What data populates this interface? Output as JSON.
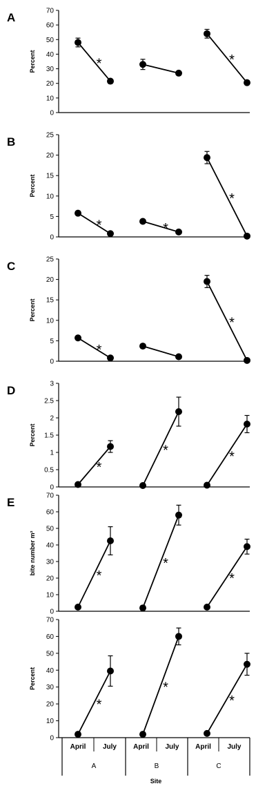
{
  "chart_data": [
    {
      "type": "line",
      "panel_label": "A",
      "ylabel": "Percent",
      "ylim": [
        0,
        70
      ],
      "yticks": [
        "0",
        "10",
        "20",
        "30",
        "40",
        "50",
        "60",
        "70"
      ],
      "categories": [
        "April",
        "July"
      ],
      "sites": [
        "A",
        "B",
        "C"
      ],
      "series": [
        {
          "values": [
            48,
            21.5
          ],
          "errors": [
            3,
            1
          ],
          "significant": true
        },
        {
          "values": [
            33,
            27
          ],
          "errors": [
            3.5,
            1
          ],
          "significant": false
        },
        {
          "values": [
            54,
            20.5
          ],
          "errors": [
            3,
            1
          ],
          "significant": true
        }
      ],
      "annotations": [
        "*",
        "",
        "*"
      ]
    },
    {
      "type": "line",
      "panel_label": "B",
      "ylabel": "Percent",
      "ylim": [
        0,
        25
      ],
      "yticks": [
        "0",
        "5",
        "10",
        "15",
        "20",
        "25"
      ],
      "categories": [
        "April",
        "July"
      ],
      "sites": [
        "A",
        "B",
        "C"
      ],
      "series": [
        {
          "values": [
            5.8,
            0.8
          ],
          "errors": [
            0.3,
            0.2
          ],
          "significant": true
        },
        {
          "values": [
            3.8,
            1.2
          ],
          "errors": [
            0.3,
            0.2
          ],
          "significant": true
        },
        {
          "values": [
            19.4,
            0.2
          ],
          "errors": [
            1.5,
            0.1
          ],
          "significant": true
        }
      ],
      "annotations": [
        "*",
        "*",
        "*"
      ]
    },
    {
      "type": "line",
      "panel_label": "C",
      "ylabel": "Percent",
      "ylim": [
        0,
        25
      ],
      "yticks": [
        "0",
        "5",
        "10",
        "15",
        "20",
        "25"
      ],
      "categories": [
        "April",
        "July"
      ],
      "sites": [
        "A",
        "B",
        "C"
      ],
      "series": [
        {
          "values": [
            5.7,
            0.8
          ],
          "errors": [
            0.3,
            0.2
          ],
          "significant": true
        },
        {
          "values": [
            3.7,
            1.1
          ],
          "errors": [
            0.3,
            0.2
          ],
          "significant": false
        },
        {
          "values": [
            19.5,
            0.2
          ],
          "errors": [
            1.5,
            0.1
          ],
          "significant": true
        }
      ],
      "annotations": [
        "*",
        "",
        "*"
      ]
    },
    {
      "type": "line",
      "panel_label": "D",
      "ylabel": "Percent",
      "ylim": [
        0,
        3
      ],
      "yticks": [
        "0",
        "0.5",
        "1",
        "1.5",
        "2",
        "2.5",
        "3"
      ],
      "categories": [
        "April",
        "July"
      ],
      "sites": [
        "A",
        "B",
        "C"
      ],
      "series": [
        {
          "values": [
            0.07,
            1.17
          ],
          "errors": [
            0.02,
            0.17
          ],
          "significant": true
        },
        {
          "values": [
            0.04,
            2.18
          ],
          "errors": [
            0.02,
            0.42
          ],
          "significant": true
        },
        {
          "values": [
            0.05,
            1.82
          ],
          "errors": [
            0.02,
            0.25
          ],
          "significant": true
        }
      ],
      "annotations": [
        "*",
        "*",
        "*"
      ]
    },
    {
      "type": "line",
      "panel_label": "E",
      "ylabel": "bite number m²",
      "ylim": [
        0,
        70
      ],
      "yticks": [
        "0",
        "10",
        "20",
        "30",
        "40",
        "50",
        "60",
        "70"
      ],
      "categories": [
        "April",
        "July"
      ],
      "sites": [
        "A",
        "B",
        "C"
      ],
      "series": [
        {
          "values": [
            2.5,
            42.5
          ],
          "errors": [
            0.5,
            8.5
          ],
          "significant": true
        },
        {
          "values": [
            2,
            58
          ],
          "errors": [
            0.5,
            6
          ],
          "significant": true
        },
        {
          "values": [
            2.5,
            39
          ],
          "errors": [
            0.5,
            4.5
          ],
          "significant": true
        }
      ],
      "annotations": [
        "*",
        "*",
        "*"
      ]
    },
    {
      "type": "line",
      "panel_label": "",
      "ylabel": "Percent",
      "ylim": [
        0,
        70
      ],
      "yticks": [
        "0",
        "10",
        "20",
        "30",
        "40",
        "50",
        "60",
        "70"
      ],
      "categories": [
        "April",
        "July"
      ],
      "sites": [
        "A",
        "B",
        "C"
      ],
      "xlabel": "Site",
      "series": [
        {
          "values": [
            2,
            39.5
          ],
          "errors": [
            0.5,
            9
          ],
          "significant": true
        },
        {
          "values": [
            2,
            60
          ],
          "errors": [
            0.5,
            5
          ],
          "significant": true
        },
        {
          "values": [
            2.5,
            43.5
          ],
          "errors": [
            0.5,
            6.5
          ],
          "significant": true
        }
      ],
      "annotations": [
        "*",
        "*",
        "*"
      ]
    }
  ]
}
